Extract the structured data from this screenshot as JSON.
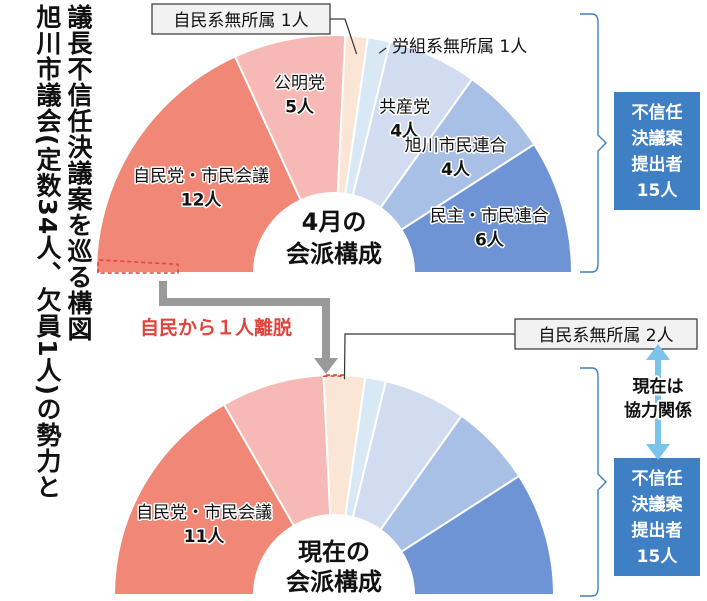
{
  "title_lines": [
    "旭川市議会(定数34人、欠員1人)の勢力と",
    "議長不信任決議案を巡る構図"
  ],
  "top_center_label": [
    "4月の",
    "会派構成"
  ],
  "bottom_center_label": [
    "現在の",
    "会派構成"
  ],
  "arrow_label": "自民から１人離脱",
  "callout_label": "現在は 協力関係",
  "side_box_label": [
    "不信任",
    "決議案",
    "提出者",
    "15人"
  ],
  "colors": {
    "ldp": "#f18776",
    "komeito": "#f7b9b5",
    "ind_ldp": "#fbe6d6",
    "labor": "#d8e8f4",
    "jcp": "#d2dcf0",
    "asahikawa": "#a8bfe6",
    "minshu": "#6e94d6",
    "box": "#3f7fc4",
    "arrow": "#9a9a9a",
    "red_text": "#e2443c"
  },
  "chart_data": [
    {
      "type": "pie",
      "subtype": "semicircle",
      "title": "4月の会派構成",
      "slices": [
        {
          "name": "自民党・市民会議",
          "value": 12,
          "label": "自民党・市民会議",
          "value_label": "12人"
        },
        {
          "name": "公明党",
          "value": 5,
          "label": "公明党",
          "value_label": "5人"
        },
        {
          "name": "自民系無所属",
          "value": 1,
          "label": "自民系無所属 1人"
        },
        {
          "name": "労組系無所属",
          "value": 1,
          "label": "労組系無所属 1人"
        },
        {
          "name": "共産党",
          "value": 4,
          "label": "共産党",
          "value_label": "4人"
        },
        {
          "name": "旭川市民連合",
          "value": 4,
          "label": "旭川市民連合",
          "value_label": "4人"
        },
        {
          "name": "民主・市民連合",
          "value": 6,
          "label": "民主・市民連合",
          "value_label": "6人"
        }
      ]
    },
    {
      "type": "pie",
      "subtype": "semicircle",
      "title": "現在の会派構成",
      "slices": [
        {
          "name": "自民党・市民会議",
          "value": 11,
          "label": "自民党・市民会議",
          "value_label": "11人"
        },
        {
          "name": "公明党",
          "value": 5
        },
        {
          "name": "自民系無所属",
          "value": 2,
          "label": "自民系無所属 2人"
        },
        {
          "name": "労組系無所属",
          "value": 1
        },
        {
          "name": "共産党",
          "value": 4
        },
        {
          "name": "旭川市民連合",
          "value": 4
        },
        {
          "name": "民主・市民連合",
          "value": 6
        }
      ]
    }
  ]
}
